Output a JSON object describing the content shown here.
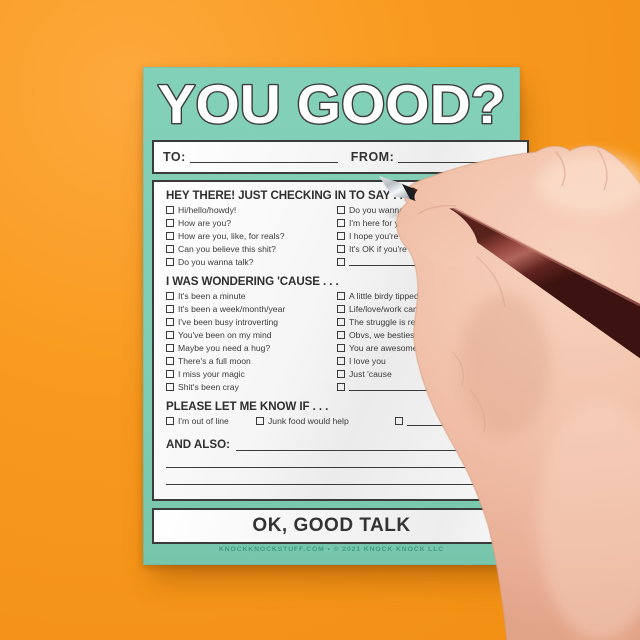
{
  "pad": {
    "title": "YOU GOOD?",
    "to_label": "TO:",
    "from_label": "FROM:",
    "sections": [
      {
        "heading": "HEY THERE! JUST CHECKING IN TO SAY . . .",
        "columns": [
          [
            "Hi/hello/howdy!",
            "How are you?",
            "How are you, like, for reals?",
            "Can you believe this shit?",
            "Do you wanna talk?"
          ],
          [
            "Do you wanna hang?",
            "I'm here for you",
            "I hope you're OK",
            "It's OK if you're not",
            ""
          ]
        ]
      },
      {
        "heading": "I WAS WONDERING 'CAUSE . . .",
        "columns": [
          [
            "It's been a minute",
            "It's been a week/month/year",
            "I've been busy introverting",
            "You've been on my mind",
            "Maybe you need a hug?",
            "There's a full moon",
            "I miss your magic",
            "Shit's been cray"
          ],
          [
            "A little birdy tipped me off",
            "Life/love/work can be hard",
            "The struggle is real",
            "Obvs, we besties",
            "You are awesome",
            "I love you",
            "Just 'cause",
            ""
          ]
        ]
      },
      {
        "heading": "PLEASE LET ME KNOW IF . . .",
        "row": [
          "I'm out of line",
          "Junk food would help",
          ""
        ]
      }
    ],
    "and_also_label": "AND ALSO:",
    "sign_off": "OK, GOOD TALK",
    "footer": "KNOCKKNOCKSTUFF.COM • © 2021 KNOCK KNOCK LLC"
  },
  "colors": {
    "background_orange": "#F8991D",
    "pad_teal": "#7FCDB4",
    "ink": "#3B3B3B",
    "footer_teal": "#3F9E81",
    "pen_maroon": "#6E2F28",
    "skin": "#F2C2AB"
  }
}
